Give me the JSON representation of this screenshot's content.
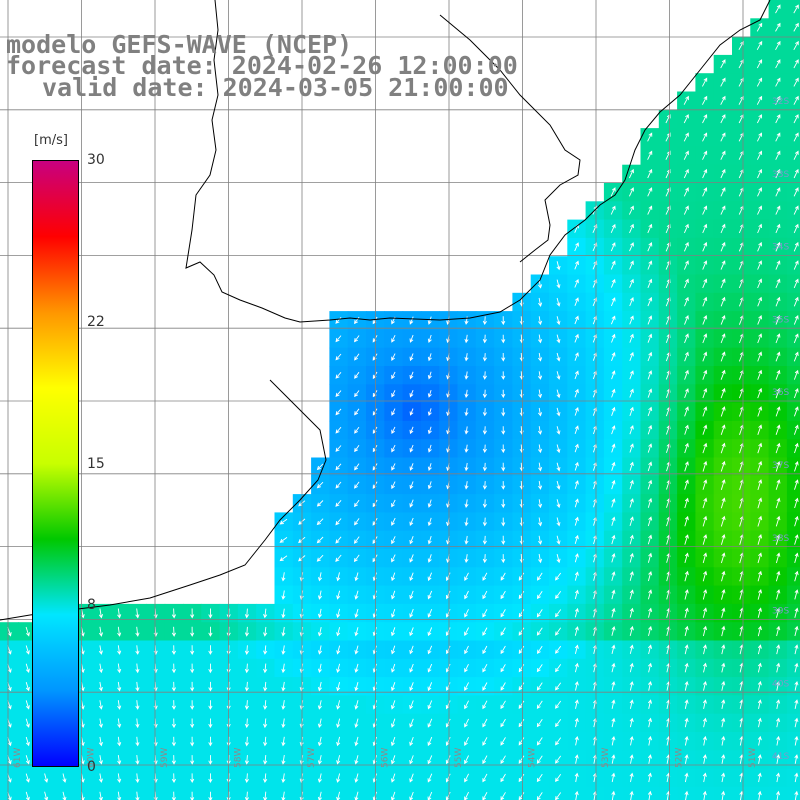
{
  "header": {
    "title_line1": "modelo GEFS-WAVE (NCEP)",
    "title_line2": "forecast date: 2024-02-26 12:00:00",
    "title_line3": "valid date: 2024-03-05 21:00:00"
  },
  "colorbar": {
    "unit": "[m/s]",
    "min": 0,
    "max": 30,
    "ticks": [
      {
        "value": 30,
        "label": "30"
      },
      {
        "value": 22,
        "label": "22"
      },
      {
        "value": 15,
        "label": "15"
      },
      {
        "value": 8,
        "label": "8"
      },
      {
        "value": 0,
        "label": "0"
      }
    ],
    "colors": [
      "#0000ff",
      "#0096ff",
      "#00e6ff",
      "#00c800",
      "#c8ff00",
      "#ffff00",
      "#ff9600",
      "#ff0000",
      "#c80080"
    ]
  },
  "axes": {
    "lon_labels": [
      "61W",
      "60W",
      "59W",
      "58W",
      "57W",
      "56W",
      "55W",
      "54W",
      "53W",
      "52W",
      "51W"
    ],
    "lat_labels": [
      "32S",
      "33S",
      "34S",
      "35S",
      "36S",
      "37S",
      "38S",
      "39S",
      "40S",
      "41S"
    ]
  },
  "field": {
    "variable": "wind speed",
    "calm_center_description": "minimum near 56W 36S",
    "max_region": "near 52W 38S"
  }
}
